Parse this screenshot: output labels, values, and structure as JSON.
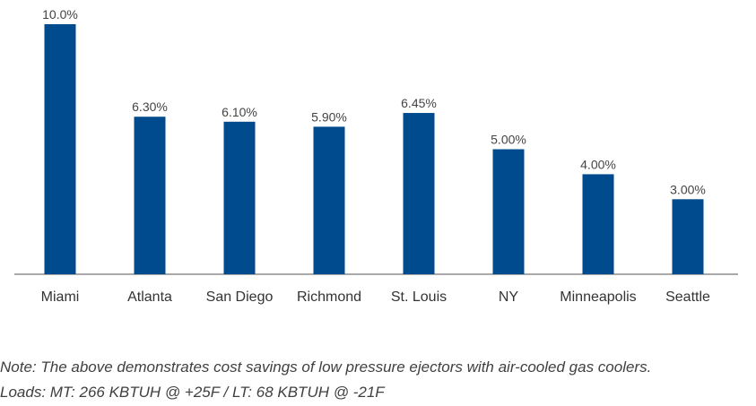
{
  "chart_data": {
    "type": "bar",
    "categories": [
      "Miami",
      "Atlanta",
      "San Diego",
      "Richmond",
      "St. Louis",
      "NY",
      "Minneapolis",
      "Seattle"
    ],
    "values": [
      10.0,
      6.3,
      6.1,
      5.9,
      6.45,
      5.0,
      4.0,
      3.0
    ],
    "value_labels": [
      "10.0%",
      "6.30%",
      "6.10%",
      "5.90%",
      "6.45%",
      "5.00%",
      "4.00%",
      "3.00%"
    ],
    "ylim": [
      0,
      10
    ],
    "title": "",
    "xlabel": "",
    "ylabel": "",
    "grid": false,
    "bar_color": "#004b8d"
  },
  "notes": {
    "line1": "Note: The above demonstrates cost savings of low pressure ejectors with air-cooled gas coolers.",
    "line2": "Loads: MT: 266 KBTUH @ +25F / LT: 68 KBTUH @ -21F"
  }
}
